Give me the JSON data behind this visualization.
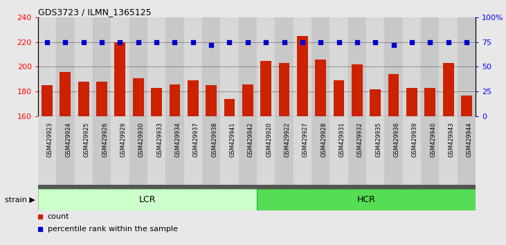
{
  "title": "GDS3723 / ILMN_1365125",
  "categories": [
    "GSM429923",
    "GSM429924",
    "GSM429925",
    "GSM429926",
    "GSM429929",
    "GSM429930",
    "GSM429933",
    "GSM429934",
    "GSM429937",
    "GSM429938",
    "GSM429941",
    "GSM429942",
    "GSM429920",
    "GSM429922",
    "GSM429927",
    "GSM429928",
    "GSM429931",
    "GSM429932",
    "GSM429935",
    "GSM429936",
    "GSM429939",
    "GSM429940",
    "GSM429943",
    "GSM429944"
  ],
  "bar_values": [
    185,
    196,
    188,
    188,
    220,
    191,
    183,
    186,
    189,
    185,
    174,
    186,
    205,
    203,
    225,
    206,
    189,
    202,
    182,
    194,
    183,
    183,
    203,
    177
  ],
  "percentile_values": [
    75,
    75,
    75,
    75,
    75,
    75,
    75,
    75,
    75,
    72,
    75,
    75,
    75,
    75,
    75,
    75,
    75,
    75,
    75,
    72,
    75,
    75,
    75,
    75
  ],
  "bar_color": "#cc2200",
  "dot_color": "#0000cc",
  "ylim_left": [
    160,
    240
  ],
  "ylim_right": [
    0,
    100
  ],
  "yticks_left": [
    160,
    180,
    200,
    220,
    240
  ],
  "yticks_right": [
    0,
    25,
    50,
    75,
    100
  ],
  "ytick_labels_right": [
    "0",
    "25",
    "50",
    "75",
    "100%"
  ],
  "grid_values": [
    180,
    200,
    220
  ],
  "lcr_count": 12,
  "hcr_count": 12,
  "lcr_label": "LCR",
  "hcr_label": "HCR",
  "strain_label": "strain",
  "legend_count_label": "count",
  "legend_percentile_label": "percentile rank within the sample",
  "fig_bg_color": "#e8e8e8",
  "plot_bg_color": "#ffffff",
  "lcr_color": "#ccffcc",
  "hcr_color": "#55dd55",
  "xtick_bg_even": "#d8d8d8",
  "xtick_bg_odd": "#c8c8c8",
  "dark_bar_color": "#555555"
}
